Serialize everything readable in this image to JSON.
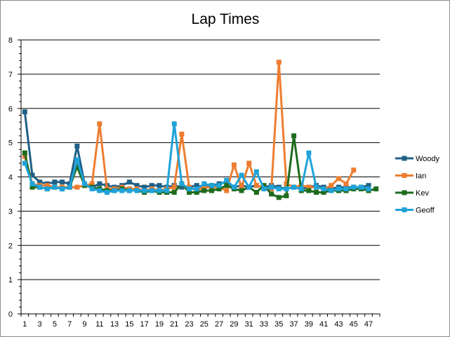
{
  "chart_data": {
    "type": "line",
    "title": "Lap Times",
    "xlabel": "",
    "ylabel": "",
    "ylim": [
      0,
      8
    ],
    "yticks": [
      0,
      1,
      2,
      3,
      4,
      5,
      6,
      7,
      8
    ],
    "x": [
      1,
      2,
      3,
      4,
      5,
      6,
      7,
      8,
      9,
      10,
      11,
      12,
      13,
      14,
      15,
      16,
      17,
      18,
      19,
      20,
      21,
      22,
      23,
      24,
      25,
      26,
      27,
      28,
      29,
      30,
      31,
      32,
      33,
      34,
      35,
      36,
      37,
      38,
      39,
      40,
      41,
      42,
      43,
      44,
      45,
      46,
      47,
      48
    ],
    "xtick_labels": [
      "1",
      "3",
      "5",
      "7",
      "9",
      "11",
      "13",
      "15",
      "17",
      "19",
      "21",
      "23",
      "25",
      "27",
      "29",
      "31",
      "33",
      "35",
      "37",
      "39",
      "41",
      "43",
      "45",
      "47"
    ],
    "grid": "horizontal",
    "legend": "right",
    "series": [
      {
        "name": "Woody",
        "color": "#1f5f86",
        "values": [
          5.9,
          4.05,
          3.85,
          3.8,
          3.85,
          3.85,
          3.8,
          4.9,
          3.8,
          3.7,
          3.8,
          3.75,
          3.7,
          3.75,
          3.85,
          3.75,
          3.7,
          3.75,
          3.75,
          3.7,
          3.75,
          3.7,
          3.7,
          3.75,
          3.7,
          3.75,
          3.8,
          3.85,
          3.7,
          3.75,
          3.7,
          3.75,
          3.7,
          3.75,
          3.7,
          3.65,
          3.7,
          3.65,
          3.7,
          3.75,
          3.7,
          3.65,
          3.7,
          3.7,
          3.7,
          3.7,
          3.75,
          null
        ]
      },
      {
        "name": "Ian",
        "color": "#ed7d31",
        "values": [
          4.6,
          3.8,
          3.75,
          3.75,
          3.7,
          3.7,
          3.7,
          3.7,
          3.75,
          3.8,
          5.55,
          3.65,
          3.65,
          3.7,
          3.65,
          3.65,
          3.6,
          3.65,
          3.6,
          3.65,
          3.7,
          5.25,
          3.7,
          3.6,
          3.7,
          3.7,
          3.7,
          3.6,
          4.35,
          3.7,
          4.4,
          3.75,
          3.7,
          3.65,
          7.35,
          3.8,
          3.7,
          3.75,
          3.7,
          3.7,
          3.65,
          3.75,
          3.95,
          3.8,
          4.2,
          null,
          null,
          null
        ]
      },
      {
        "name": "Kev",
        "color": "#1e6b1e",
        "values": [
          4.7,
          3.7,
          3.7,
          3.65,
          3.7,
          3.65,
          3.7,
          4.3,
          3.75,
          3.7,
          3.65,
          3.6,
          3.6,
          3.65,
          3.6,
          3.6,
          3.55,
          3.6,
          3.55,
          3.55,
          3.55,
          3.8,
          3.55,
          3.55,
          3.6,
          3.6,
          3.65,
          3.75,
          3.65,
          3.6,
          3.7,
          3.55,
          3.75,
          3.5,
          3.4,
          3.45,
          5.2,
          3.6,
          3.6,
          3.55,
          3.55,
          3.6,
          3.6,
          3.6,
          3.65,
          3.65,
          3.6,
          3.65
        ]
      },
      {
        "name": "Geoff",
        "color": "#1fa3d9",
        "values": [
          4.4,
          3.8,
          3.7,
          3.65,
          3.7,
          3.65,
          3.7,
          4.5,
          3.8,
          3.65,
          3.6,
          3.55,
          3.6,
          3.6,
          3.6,
          3.6,
          3.6,
          3.6,
          3.6,
          3.6,
          5.55,
          3.8,
          3.65,
          3.65,
          3.8,
          3.75,
          3.75,
          3.9,
          3.7,
          4.05,
          3.7,
          4.15,
          3.65,
          3.7,
          3.65,
          3.65,
          3.7,
          3.65,
          4.7,
          3.7,
          3.65,
          3.6,
          3.65,
          3.65,
          3.7,
          3.7,
          3.65,
          null
        ]
      }
    ]
  }
}
